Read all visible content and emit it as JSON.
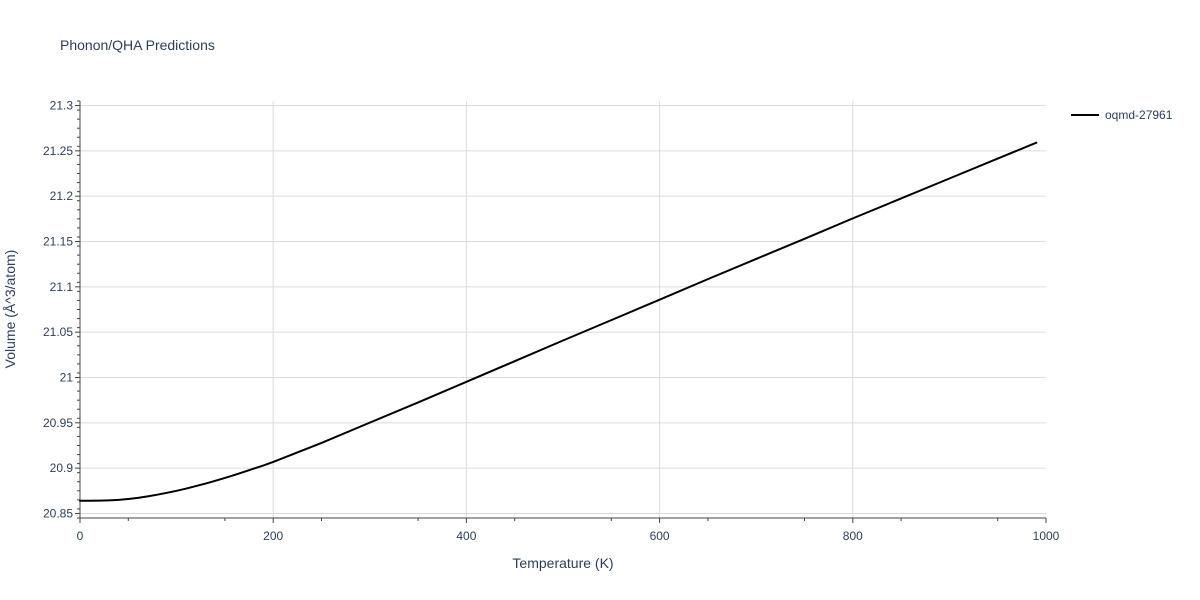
{
  "chart_data": {
    "type": "line",
    "title": "Phonon/QHA Predictions",
    "xlabel": "Temperature (K)",
    "ylabel": "Volume (Å^3/atom)",
    "xlim": [
      0,
      1000
    ],
    "ylim": [
      20.845,
      21.305
    ],
    "x_ticks": [
      0,
      200,
      400,
      600,
      800,
      1000
    ],
    "x_tick_labels": [
      "0",
      "200",
      "400",
      "600",
      "800",
      "1000"
    ],
    "y_ticks": [
      20.85,
      20.9,
      20.95,
      21.0,
      21.05,
      21.1,
      21.15,
      21.2,
      21.25,
      21.3
    ],
    "y_tick_labels": [
      "20.85",
      "20.9",
      "20.95",
      "21",
      "21.05",
      "21.1",
      "21.15",
      "21.2",
      "21.25",
      "21.3"
    ],
    "grid": true,
    "legend_position": "top-right",
    "series": [
      {
        "name": "oqmd-27961",
        "color": "#000000",
        "x": [
          0,
          10,
          20,
          30,
          40,
          50,
          60,
          70,
          80,
          90,
          100,
          110,
          120,
          130,
          140,
          150,
          160,
          170,
          180,
          190,
          200,
          250,
          300,
          350,
          400,
          450,
          500,
          550,
          600,
          650,
          700,
          750,
          800,
          850,
          900,
          950,
          990
        ],
        "y": [
          20.864,
          20.864,
          20.8642,
          20.8645,
          20.865,
          20.866,
          20.8672,
          20.8688,
          20.8707,
          20.8728,
          20.875,
          20.8775,
          20.8802,
          20.883,
          20.886,
          20.8892,
          20.8925,
          20.896,
          20.8995,
          20.903,
          20.9068,
          20.9278,
          20.9502,
          20.9725,
          20.9952,
          21.018,
          21.0408,
          21.0633,
          21.0858,
          21.1085,
          21.1308,
          21.153,
          21.1755,
          21.1975,
          21.2195,
          21.2415,
          21.259
        ]
      }
    ]
  }
}
